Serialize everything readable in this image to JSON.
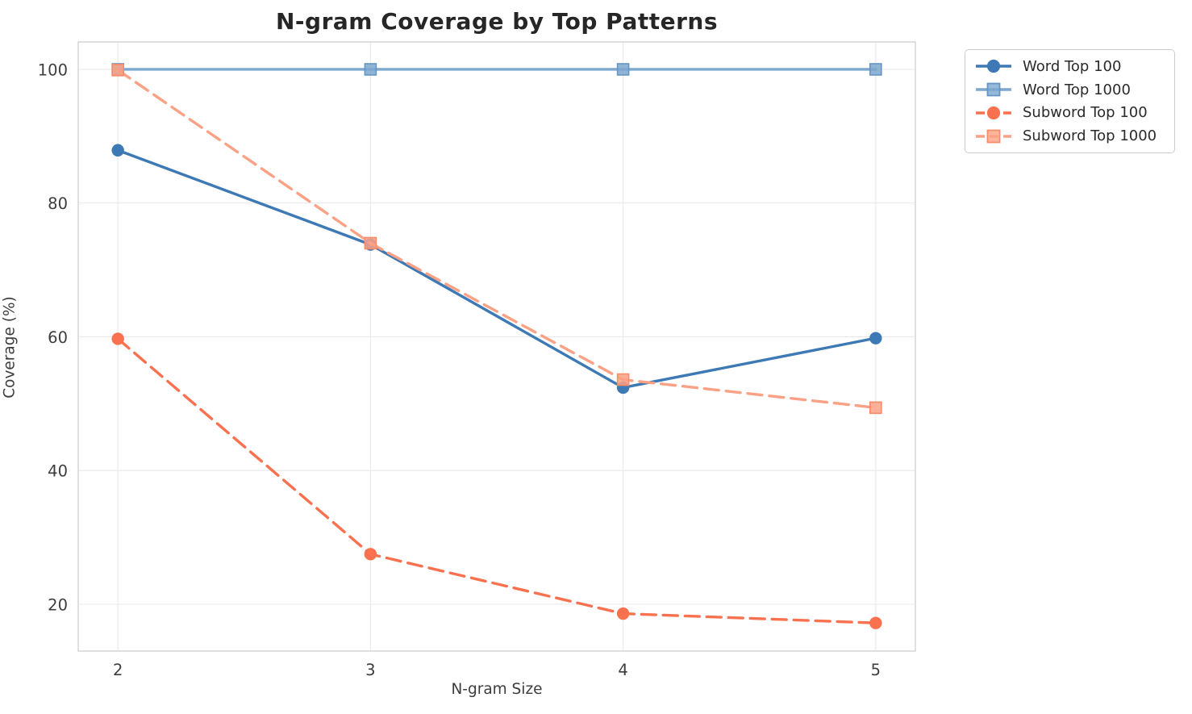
{
  "chart_data": {
    "type": "line",
    "title": "N-gram Coverage by Top Patterns",
    "xlabel": "N-gram Size",
    "ylabel": "Coverage (%)",
    "x": [
      2,
      3,
      4,
      5
    ],
    "xticks": [
      "2",
      "3",
      "4",
      "5"
    ],
    "yticks": [
      20,
      40,
      60,
      80,
      100
    ],
    "xlim": [
      1.843,
      5.157
    ],
    "ylim": [
      13.0,
      104.1
    ],
    "grid": true,
    "legend_position": "outside upper right",
    "series": [
      {
        "name": "Word Top 100",
        "values": [
          87.9,
          73.8,
          52.4,
          59.8
        ],
        "color": "#3D79B4",
        "marker": "circle",
        "marker_edge": "#3D79B4",
        "line_style": "solid"
      },
      {
        "name": "Word Top 1000",
        "values": [
          100,
          100,
          100,
          100
        ],
        "color": "#7CA7CF",
        "marker": "square",
        "marker_edge": "#6596C4",
        "line_style": "solid"
      },
      {
        "name": "Subword Top 100",
        "values": [
          59.7,
          27.5,
          18.6,
          17.2
        ],
        "color": "#F9714E",
        "marker": "circle",
        "marker_edge": "#F9714E",
        "line_style": "dashed"
      },
      {
        "name": "Subword Top 1000",
        "values": [
          99.9,
          74.0,
          53.6,
          49.4
        ],
        "color": "#FBA185",
        "marker": "square",
        "marker_edge": "#F98B67",
        "line_style": "dashed"
      }
    ],
    "style": {
      "grid_color": "#e9e9e9",
      "spine_color": "#cfcfcf",
      "tick_label_color": "#3d3d3d",
      "tick_font_size": 19.5,
      "line_width": 3.4,
      "dash_pattern": "18 9",
      "background": "#ffffff"
    }
  },
  "legend": {
    "border_color": "#cccccc",
    "background": "#ffffff",
    "items": [
      "Word Top 100",
      "Word Top 1000",
      "Subword Top 100",
      "Subword Top 1000"
    ]
  }
}
